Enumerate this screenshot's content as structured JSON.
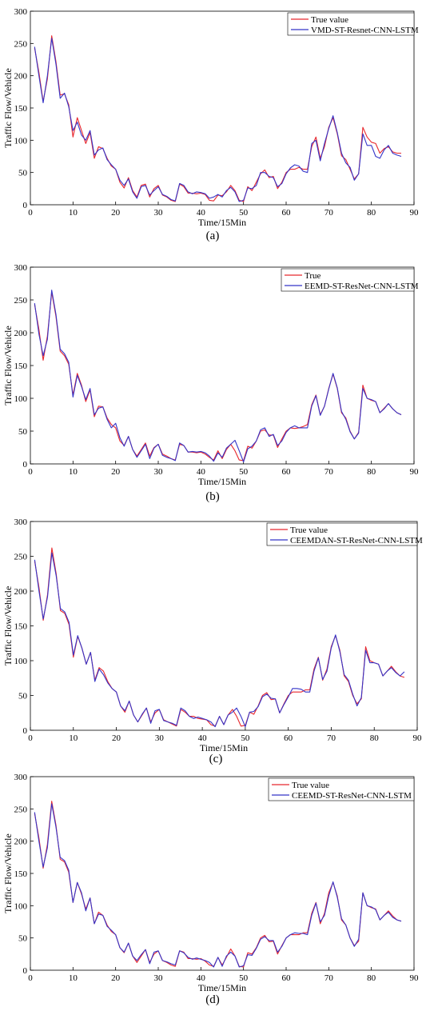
{
  "chart_data": [
    {
      "type": "line",
      "caption": "(a)",
      "xlabel": "Time/15Min",
      "ylabel": "Traffic Flow/Vehicle",
      "xlim": [
        0,
        90
      ],
      "ylim": [
        0,
        300
      ],
      "xticks": [
        "0",
        "10",
        "20",
        "30",
        "40",
        "50",
        "60",
        "70",
        "80",
        "90"
      ],
      "yticks": [
        "0",
        "50",
        "100",
        "150",
        "200",
        "250",
        "300"
      ],
      "legend_position": "top-right",
      "grid": false,
      "x": [
        1,
        2,
        3,
        4,
        5,
        6,
        7,
        8,
        9,
        10,
        11,
        12,
        13,
        14,
        15,
        16,
        17,
        18,
        19,
        20,
        21,
        22,
        23,
        24,
        25,
        26,
        27,
        28,
        29,
        30,
        31,
        32,
        33,
        34,
        35,
        36,
        37,
        38,
        39,
        40,
        41,
        42,
        43,
        44,
        45,
        46,
        47,
        48,
        49,
        50,
        51,
        52,
        53,
        54,
        55,
        56,
        57,
        58,
        59,
        60,
        61,
        62,
        63,
        64,
        65,
        66,
        67,
        68,
        69,
        70,
        71,
        72,
        73,
        74,
        75,
        76,
        77,
        78,
        79,
        80,
        81,
        82,
        83,
        84,
        85,
        86,
        87
      ],
      "series": [
        {
          "name": "True value",
          "color": "#e8272d",
          "values": [
            243,
            205,
            160,
            195,
            262,
            222,
            170,
            172,
            155,
            105,
            135,
            115,
            95,
            112,
            72,
            90,
            87,
            72,
            60,
            55,
            35,
            26,
            42,
            22,
            12,
            30,
            32,
            12,
            25,
            30,
            15,
            12,
            7,
            5,
            32,
            28,
            18,
            18,
            17,
            18,
            16,
            7,
            6,
            15,
            14,
            20,
            30,
            22,
            7,
            5,
            28,
            22,
            35,
            48,
            54,
            42,
            44,
            25,
            35,
            50,
            55,
            55,
            58,
            55,
            55,
            90,
            105,
            72,
            90,
            120,
            135,
            110,
            76,
            70,
            55,
            40,
            48,
            120,
            105,
            97,
            95,
            80,
            87,
            90,
            82,
            80,
            80
          ]
        },
        {
          "name": "VMD-ST-Resnet-CNN-LSTM",
          "color": "#3535c8",
          "values": [
            245,
            200,
            158,
            200,
            258,
            218,
            165,
            173,
            152,
            115,
            128,
            108,
            100,
            115,
            77,
            85,
            88,
            70,
            62,
            55,
            38,
            30,
            40,
            20,
            10,
            28,
            30,
            15,
            22,
            28,
            16,
            13,
            8,
            6,
            33,
            30,
            20,
            17,
            20,
            19,
            17,
            10,
            12,
            16,
            12,
            22,
            27,
            20,
            5,
            7,
            26,
            25,
            30,
            50,
            50,
            44,
            42,
            28,
            33,
            48,
            57,
            62,
            60,
            52,
            50,
            95,
            100,
            68,
            95,
            118,
            138,
            112,
            80,
            65,
            58,
            38,
            48,
            110,
            92,
            92,
            75,
            72,
            85,
            92,
            80,
            77,
            75
          ]
        }
      ]
    },
    {
      "type": "line",
      "caption": "(b)",
      "xlabel": "Time/15Min",
      "ylabel": "Traffic Flow/Vehicle",
      "xlim": [
        0,
        90
      ],
      "ylim": [
        0,
        300
      ],
      "xticks": [
        "0",
        "10",
        "20",
        "30",
        "40",
        "50",
        "60",
        "70",
        "80",
        "90"
      ],
      "yticks": [
        "0",
        "50",
        "100",
        "150",
        "200",
        "250",
        "300"
      ],
      "legend_position": "top-right",
      "grid": false,
      "x": [
        1,
        2,
        3,
        4,
        5,
        6,
        7,
        8,
        9,
        10,
        11,
        12,
        13,
        14,
        15,
        16,
        17,
        18,
        19,
        20,
        21,
        22,
        23,
        24,
        25,
        26,
        27,
        28,
        29,
        30,
        31,
        32,
        33,
        34,
        35,
        36,
        37,
        38,
        39,
        40,
        41,
        42,
        43,
        44,
        45,
        46,
        47,
        48,
        49,
        50,
        51,
        52,
        53,
        54,
        55,
        56,
        57,
        58,
        59,
        60,
        61,
        62,
        63,
        64,
        65,
        66,
        67,
        68,
        69,
        70,
        71,
        72,
        73,
        74,
        75,
        76,
        77,
        78,
        79,
        80,
        81,
        82,
        83,
        84,
        85,
        86,
        87
      ],
      "series": [
        {
          "name": "True",
          "color": "#e8272d",
          "values": [
            243,
            205,
            158,
            195,
            262,
            225,
            172,
            165,
            152,
            105,
            138,
            120,
            95,
            113,
            72,
            88,
            87,
            70,
            60,
            55,
            35,
            28,
            42,
            22,
            12,
            22,
            32,
            12,
            25,
            30,
            15,
            12,
            8,
            6,
            30,
            28,
            18,
            18,
            17,
            18,
            15,
            10,
            6,
            20,
            8,
            22,
            30,
            20,
            6,
            5,
            27,
            24,
            35,
            50,
            52,
            44,
            44,
            25,
            38,
            50,
            55,
            54,
            55,
            57,
            60,
            90,
            105,
            75,
            88,
            115,
            137,
            115,
            78,
            70,
            50,
            38,
            48,
            120,
            100,
            97,
            95,
            78,
            85,
            92,
            84,
            78,
            75
          ]
        },
        {
          "name": "EEMD-ST-ResNet-CNN-LSTM",
          "color": "#3535c8",
          "values": [
            245,
            198,
            165,
            190,
            265,
            228,
            175,
            168,
            155,
            102,
            135,
            118,
            98,
            115,
            75,
            85,
            87,
            68,
            55,
            62,
            40,
            27,
            42,
            22,
            10,
            20,
            30,
            8,
            24,
            30,
            13,
            10,
            8,
            5,
            32,
            28,
            18,
            19,
            18,
            19,
            17,
            12,
            4,
            17,
            10,
            24,
            30,
            36,
            20,
            3,
            23,
            27,
            35,
            52,
            55,
            42,
            45,
            28,
            35,
            48,
            55,
            58,
            55,
            55,
            55,
            88,
            104,
            74,
            88,
            114,
            138,
            116,
            80,
            68,
            49,
            38,
            47,
            115,
            100,
            98,
            95,
            78,
            84,
            92,
            84,
            78,
            75
          ]
        }
      ]
    },
    {
      "type": "line",
      "caption": "(c)",
      "xlabel": "Time/15Min",
      "ylabel": "Traffic Flow/Vehicle",
      "xlim": [
        0,
        90
      ],
      "ylim": [
        0,
        300
      ],
      "xticks": [
        "0",
        "10",
        "20",
        "30",
        "40",
        "50",
        "60",
        "70",
        "80",
        "90"
      ],
      "yticks": [
        "0",
        "50",
        "100",
        "150",
        "200",
        "250",
        "300"
      ],
      "legend_position": "top-right",
      "grid": false,
      "x": [
        1,
        2,
        3,
        4,
        5,
        6,
        7,
        8,
        9,
        10,
        11,
        12,
        13,
        14,
        15,
        16,
        17,
        18,
        19,
        20,
        21,
        22,
        23,
        24,
        25,
        26,
        27,
        28,
        29,
        30,
        31,
        32,
        33,
        34,
        35,
        36,
        37,
        38,
        39,
        40,
        41,
        42,
        43,
        44,
        45,
        46,
        47,
        48,
        49,
        50,
        51,
        52,
        53,
        54,
        55,
        56,
        57,
        58,
        59,
        60,
        61,
        62,
        63,
        64,
        65,
        66,
        67,
        68,
        69,
        70,
        71,
        72,
        73,
        74,
        75,
        76,
        77,
        78,
        79,
        80,
        81,
        82,
        83,
        84,
        85,
        86,
        87
      ],
      "series": [
        {
          "name": "True value",
          "color": "#e8272d",
          "values": [
            243,
            205,
            158,
            195,
            262,
            225,
            172,
            168,
            152,
            105,
            135,
            118,
            95,
            112,
            72,
            90,
            85,
            70,
            60,
            55,
            35,
            26,
            42,
            22,
            12,
            22,
            32,
            12,
            25,
            30,
            15,
            12,
            9,
            6,
            30,
            26,
            20,
            20,
            17,
            16,
            15,
            8,
            6,
            20,
            8,
            22,
            30,
            20,
            6,
            7,
            26,
            23,
            35,
            50,
            54,
            44,
            45,
            25,
            38,
            50,
            55,
            55,
            55,
            58,
            58,
            88,
            105,
            72,
            88,
            120,
            136,
            115,
            78,
            70,
            50,
            38,
            45,
            120,
            100,
            97,
            95,
            78,
            85,
            92,
            84,
            78,
            76
          ]
        },
        {
          "name": "CEEMDAN-ST-ResNet-CNN-LSTM",
          "color": "#3535c8",
          "values": [
            245,
            200,
            160,
            192,
            255,
            222,
            175,
            170,
            155,
            108,
            136,
            118,
            95,
            112,
            70,
            88,
            80,
            68,
            60,
            55,
            35,
            28,
            42,
            22,
            12,
            23,
            32,
            10,
            28,
            30,
            14,
            12,
            10,
            7,
            32,
            28,
            20,
            17,
            19,
            17,
            15,
            12,
            5,
            20,
            8,
            22,
            26,
            32,
            20,
            5,
            26,
            27,
            34,
            48,
            52,
            46,
            45,
            25,
            37,
            48,
            60,
            60,
            59,
            55,
            55,
            85,
            104,
            73,
            85,
            118,
            137,
            113,
            80,
            72,
            52,
            35,
            47,
            115,
            97,
            97,
            95,
            78,
            85,
            90,
            83,
            78,
            84
          ]
        }
      ]
    },
    {
      "type": "line",
      "caption": "(d)",
      "xlabel": "Time/15Min",
      "ylabel": "Traffic Flow/Vehicle",
      "xlim": [
        0,
        90
      ],
      "ylim": [
        0,
        300
      ],
      "xticks": [
        "0",
        "10",
        "20",
        "30",
        "40",
        "50",
        "60",
        "70",
        "80",
        "90"
      ],
      "yticks": [
        "0",
        "50",
        "100",
        "150",
        "200",
        "250",
        "300"
      ],
      "legend_position": "top-right",
      "grid": false,
      "x": [
        1,
        2,
        3,
        4,
        5,
        6,
        7,
        8,
        9,
        10,
        11,
        12,
        13,
        14,
        15,
        16,
        17,
        18,
        19,
        20,
        21,
        22,
        23,
        24,
        25,
        26,
        27,
        28,
        29,
        30,
        31,
        32,
        33,
        34,
        35,
        36,
        37,
        38,
        39,
        40,
        41,
        42,
        43,
        44,
        45,
        46,
        47,
        48,
        49,
        50,
        51,
        52,
        53,
        54,
        55,
        56,
        57,
        58,
        59,
        60,
        61,
        62,
        63,
        64,
        65,
        66,
        67,
        68,
        69,
        70,
        71,
        72,
        73,
        74,
        75,
        76,
        77,
        78,
        79,
        80,
        81,
        82,
        83,
        84,
        85,
        86,
        87
      ],
      "series": [
        {
          "name": "True value",
          "color": "#e8272d",
          "values": [
            243,
            205,
            158,
            195,
            262,
            225,
            172,
            168,
            152,
            105,
            136,
            118,
            95,
            112,
            72,
            90,
            85,
            70,
            60,
            55,
            35,
            27,
            42,
            22,
            12,
            22,
            32,
            12,
            25,
            30,
            15,
            12,
            8,
            6,
            30,
            28,
            18,
            18,
            17,
            18,
            14,
            8,
            6,
            20,
            8,
            20,
            33,
            22,
            6,
            5,
            27,
            25,
            35,
            50,
            54,
            44,
            45,
            25,
            38,
            50,
            55,
            55,
            55,
            58,
            58,
            88,
            105,
            72,
            88,
            120,
            136,
            115,
            78,
            70,
            50,
            38,
            45,
            120,
            100,
            97,
            95,
            78,
            85,
            92,
            84,
            78,
            76
          ]
        },
        {
          "name": "CEEMD-ST-ResNet-CNN-LSTM",
          "color": "#3535c8",
          "values": [
            245,
            200,
            160,
            190,
            258,
            222,
            175,
            170,
            155,
            105,
            136,
            120,
            92,
            112,
            72,
            87,
            85,
            68,
            62,
            55,
            35,
            28,
            42,
            22,
            15,
            24,
            32,
            10,
            28,
            30,
            15,
            13,
            10,
            8,
            30,
            27,
            20,
            17,
            19,
            17,
            15,
            12,
            5,
            20,
            6,
            22,
            28,
            22,
            5,
            7,
            24,
            23,
            34,
            48,
            52,
            46,
            46,
            28,
            37,
            50,
            55,
            58,
            57,
            57,
            55,
            85,
            104,
            75,
            85,
            115,
            137,
            113,
            80,
            70,
            50,
            37,
            48,
            120,
            100,
            98,
            94,
            78,
            85,
            90,
            82,
            78,
            76
          ]
        }
      ]
    }
  ]
}
